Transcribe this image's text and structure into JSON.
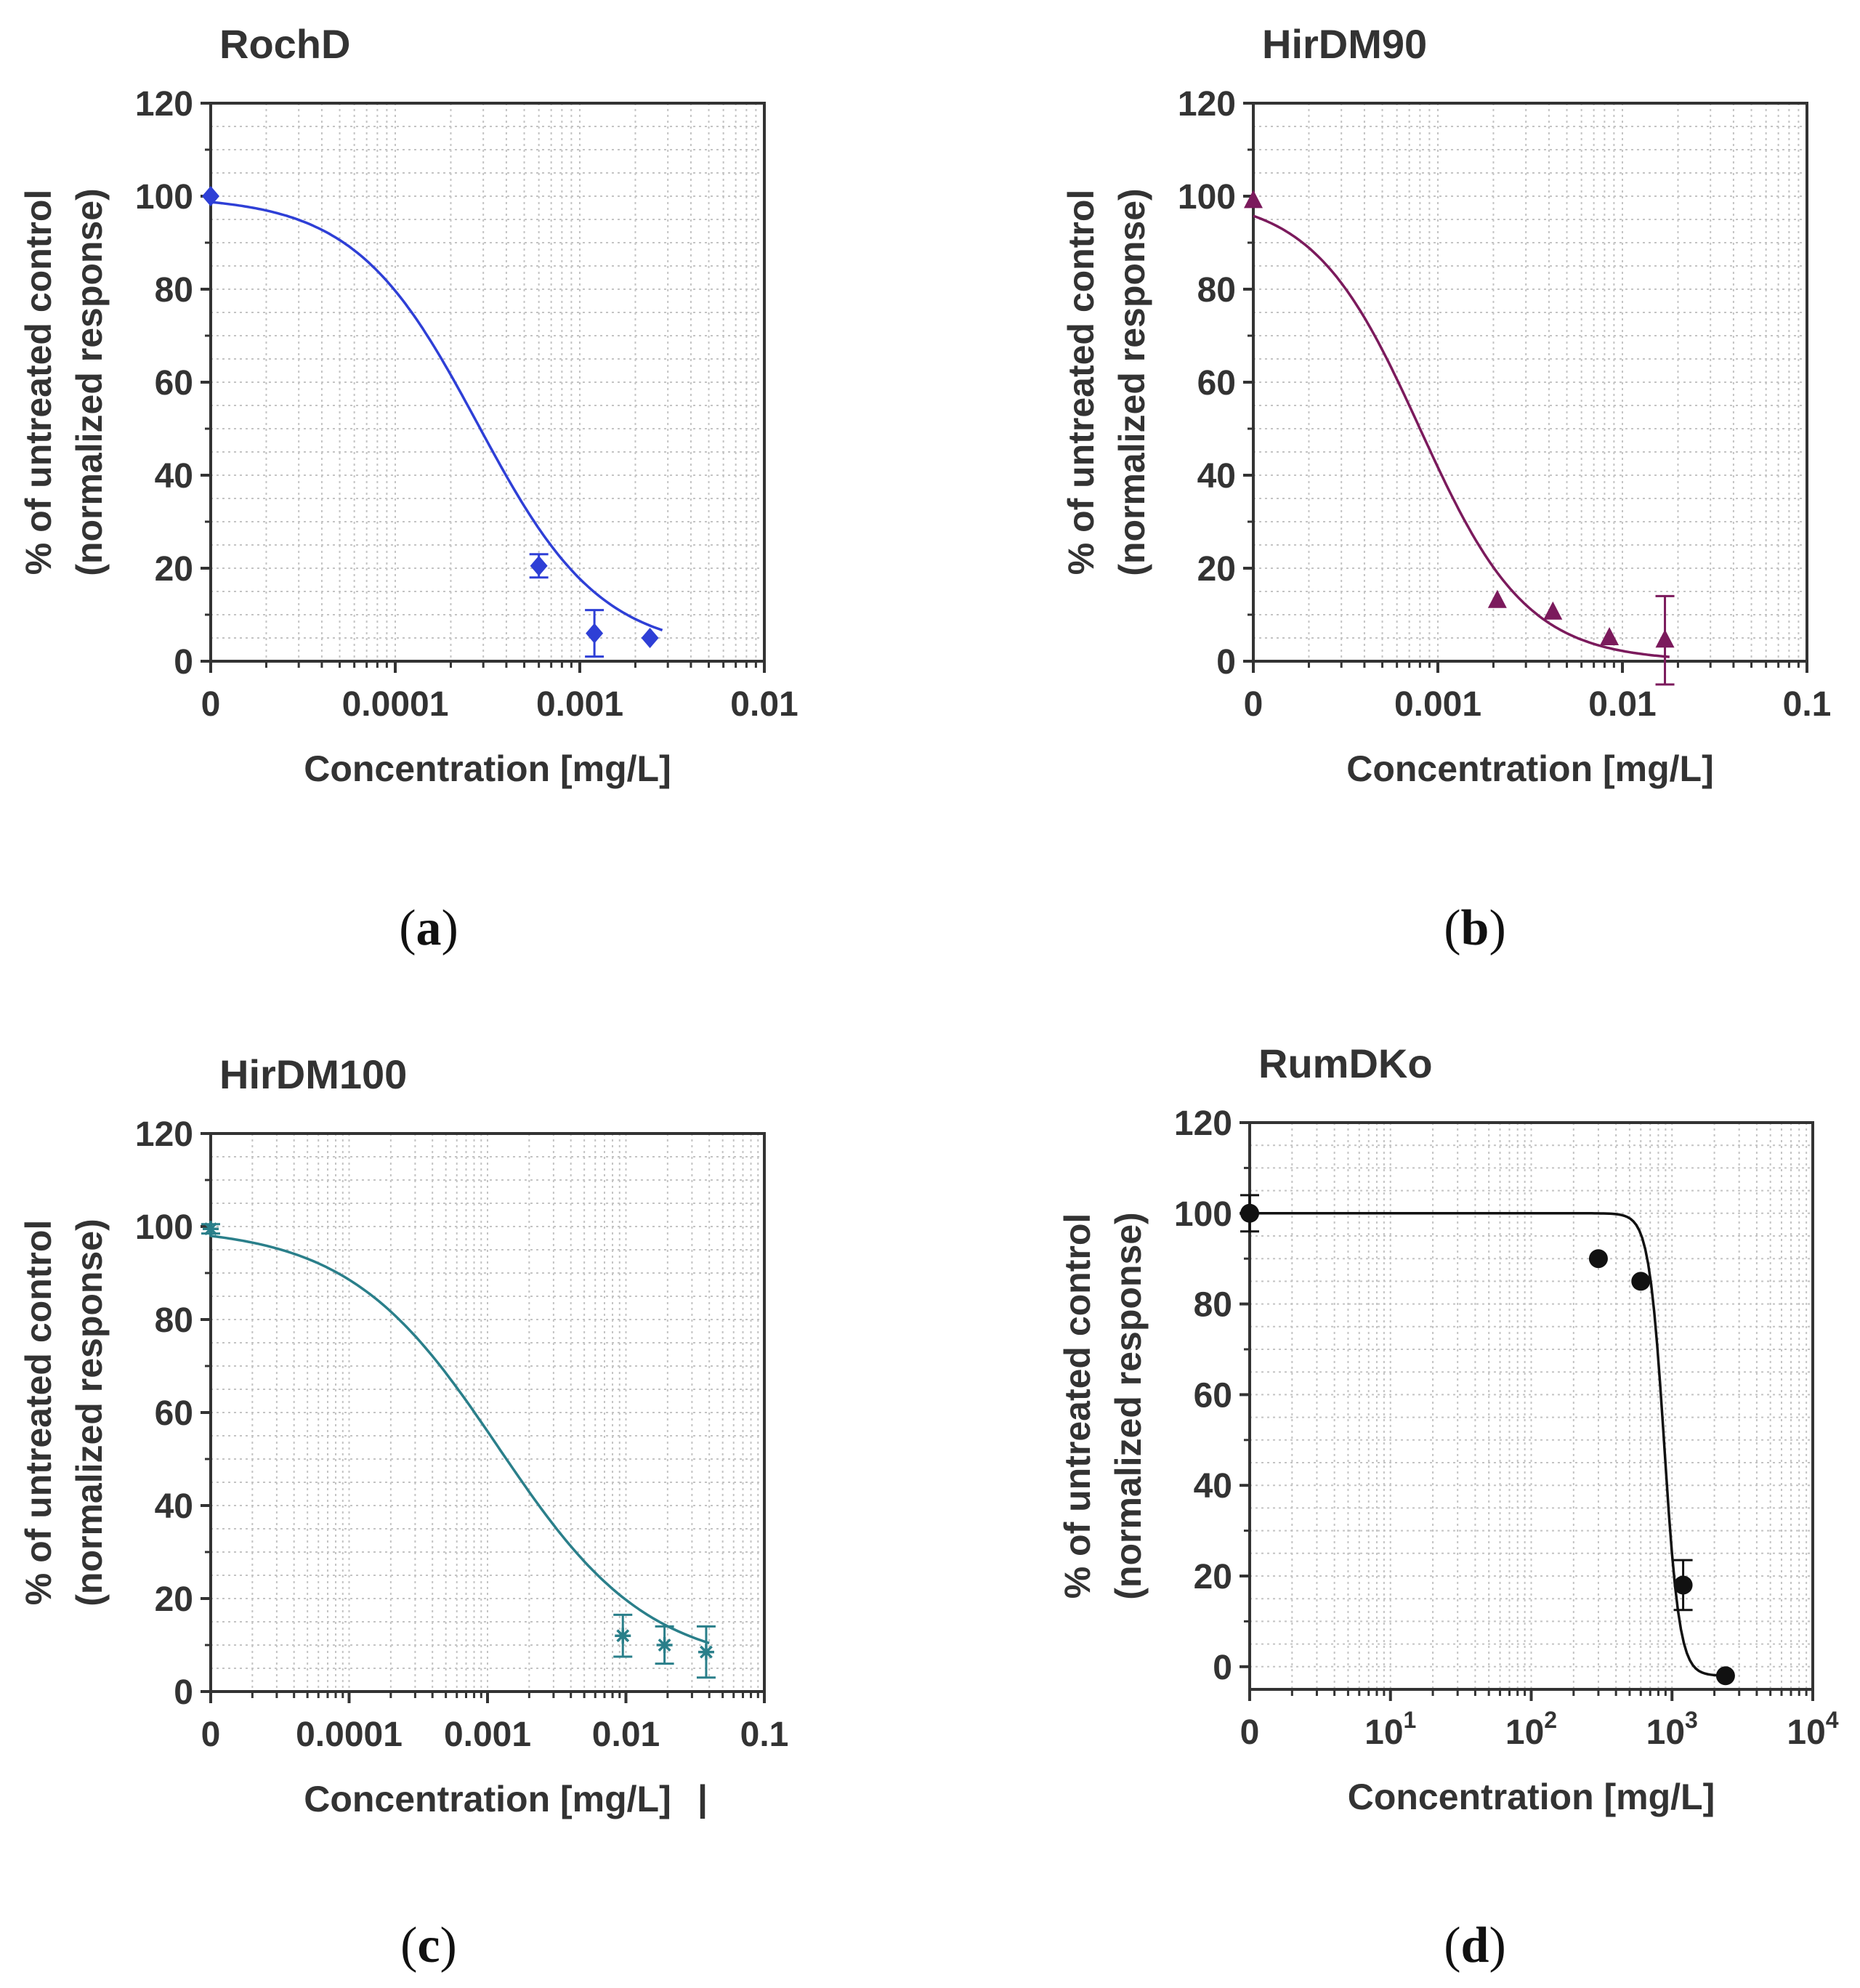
{
  "figure": {
    "captions": [
      {
        "open": "(",
        "letter": "a",
        "close": ")"
      },
      {
        "open": "(",
        "letter": "b",
        "close": ")"
      },
      {
        "open": "(",
        "letter": "c",
        "close": ")"
      },
      {
        "open": "(",
        "letter": "d",
        "close": ")"
      }
    ],
    "stray_mark": "|"
  },
  "chart_data": [
    {
      "type": "scatter",
      "title": "RochD",
      "xlabel": "Concentration  [mg/L]",
      "ylabel": [
        "% of untreated control",
        "(normalized response)"
      ],
      "xscale": "log",
      "xlim": [
        1e-05,
        0.01
      ],
      "ylim": [
        0,
        120
      ],
      "x_ticks": [
        {
          "label": "0",
          "value": 1e-05
        },
        {
          "label": "0.0001",
          "value": 0.0001
        },
        {
          "label": "0.001",
          "value": 0.001
        },
        {
          "label": "0.01",
          "value": 0.01
        }
      ],
      "y_ticks": [
        0,
        20,
        40,
        60,
        80,
        100,
        120
      ],
      "grid": true,
      "color": "#2e3fd6",
      "marker": "diamond",
      "points": [
        {
          "x": 1e-05,
          "y": 100,
          "err": 0
        },
        {
          "x": 0.0006,
          "y": 20.5,
          "err": 2.5
        },
        {
          "x": 0.0012,
          "y": 6,
          "err": 5
        },
        {
          "x": 0.0024,
          "y": 5,
          "err": 0
        }
      ],
      "fit": {
        "top": 100,
        "bottom": 2,
        "ec50": 0.00028,
        "hill": 1.3,
        "x_from": 1e-05,
        "x_to": 0.0028
      }
    },
    {
      "type": "scatter",
      "title": "HirDM90",
      "xlabel": "Concentration  [mg/L]",
      "ylabel": [
        "% of untreated control",
        "(normalized response)"
      ],
      "xscale": "log",
      "xlim": [
        0.0001,
        0.1
      ],
      "ylim": [
        0,
        120
      ],
      "x_ticks": [
        {
          "label": "0",
          "value": 0.0001
        },
        {
          "label": "0.001",
          "value": 0.001
        },
        {
          "label": "0.01",
          "value": 0.01
        },
        {
          "label": "0.1",
          "value": 0.1
        }
      ],
      "y_ticks": [
        0,
        20,
        40,
        60,
        80,
        100,
        120
      ],
      "grid": true,
      "color": "#7b1a5c",
      "marker": "triangle",
      "points": [
        {
          "x": 0.0001,
          "y": 99,
          "err": 0
        },
        {
          "x": 0.0021,
          "y": 13,
          "err": 0
        },
        {
          "x": 0.0042,
          "y": 10.5,
          "err": 0
        },
        {
          "x": 0.0085,
          "y": 5,
          "err": 0
        },
        {
          "x": 0.017,
          "y": 4.5,
          "err": 9.5
        }
      ],
      "fit": {
        "top": 100,
        "bottom": 0,
        "ec50": 0.0008,
        "hill": 1.5,
        "x_from": 0.0001,
        "x_to": 0.018
      }
    },
    {
      "type": "scatter",
      "title": "HirDM100",
      "xlabel": "Concentration  [mg/L]",
      "ylabel": [
        "% of untreated control",
        "(normalized response)"
      ],
      "xscale": "log",
      "xlim": [
        1e-05,
        0.1
      ],
      "ylim": [
        0,
        120
      ],
      "x_ticks": [
        {
          "label": "0",
          "value": 1e-05
        },
        {
          "label": "0.0001",
          "value": 0.0001
        },
        {
          "label": "0.001",
          "value": 0.001
        },
        {
          "label": "0.01",
          "value": 0.01
        },
        {
          "label": "0.1",
          "value": 0.1
        }
      ],
      "y_ticks": [
        0,
        20,
        40,
        60,
        80,
        100,
        120
      ],
      "grid": true,
      "color": "#2a7f8a",
      "marker": "star",
      "points": [
        {
          "x": 1e-05,
          "y": 99.5,
          "err": 1
        },
        {
          "x": 0.0095,
          "y": 12,
          "err": 4.5
        },
        {
          "x": 0.019,
          "y": 10,
          "err": 4
        },
        {
          "x": 0.038,
          "y": 8.5,
          "err": 5.5
        }
      ],
      "fit": {
        "top": 100,
        "bottom": 5,
        "ec50": 0.0012,
        "hill": 0.8,
        "x_from": 1e-05,
        "x_to": 0.04
      }
    },
    {
      "type": "scatter",
      "title": "RumDKo",
      "xlabel": "Concentration  [mg/L]",
      "ylabel": [
        "% of untreated control",
        "(normalized response)"
      ],
      "xscale": "log",
      "xlim": [
        1,
        10000
      ],
      "ylim": [
        -5,
        120
      ],
      "x_ticks": [
        {
          "label": "0",
          "value": 1
        },
        {
          "base": "10",
          "exp": "1",
          "value": 10
        },
        {
          "base": "10",
          "exp": "2",
          "value": 100
        },
        {
          "base": "10",
          "exp": "3",
          "value": 1000
        },
        {
          "base": "10",
          "exp": "4",
          "value": 10000
        }
      ],
      "y_ticks": [
        0,
        20,
        40,
        60,
        80,
        100,
        120
      ],
      "grid": true,
      "color": "#111111",
      "marker": "circle",
      "points": [
        {
          "x": 1,
          "y": 100,
          "err": 4
        },
        {
          "x": 300,
          "y": 90,
          "err": 0
        },
        {
          "x": 600,
          "y": 85,
          "err": 0
        },
        {
          "x": 1200,
          "y": 18,
          "err": 5.5
        },
        {
          "x": 2400,
          "y": -2,
          "err": 0
        }
      ],
      "fit": {
        "top": 100,
        "bottom": -2,
        "ec50": 880,
        "hill": 8,
        "x_from": 1,
        "x_to": 2400
      }
    }
  ]
}
